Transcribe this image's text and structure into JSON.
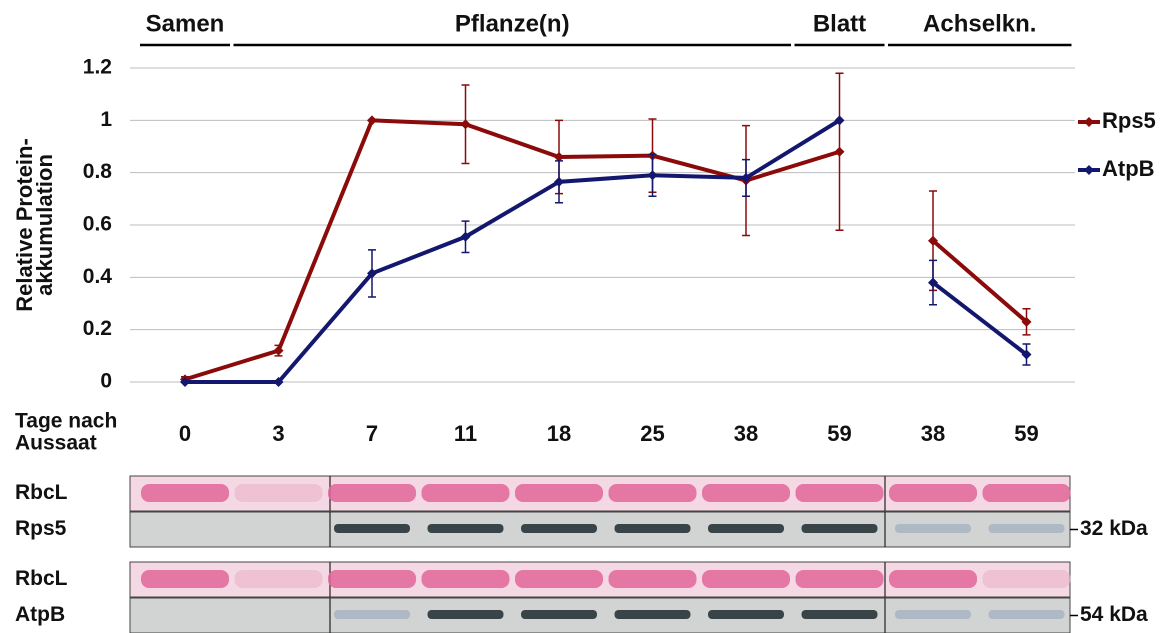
{
  "chart_data": [
    {
      "type": "line",
      "ylabel": [
        "Relative Protein-",
        "akkumulation"
      ],
      "xlabel": [
        "Tage nach",
        "Aussaat"
      ],
      "categories": [
        "0",
        "3",
        "7",
        "11",
        "18",
        "25",
        "38",
        "59"
      ],
      "groups": [
        {
          "label": "Samen",
          "count": 1
        },
        {
          "label": "Pflanze(n)",
          "count": 6
        },
        {
          "label": "Blatt",
          "count": 1
        }
      ],
      "series": [
        {
          "name": "Rps5",
          "color": "#8b0a0a",
          "values": [
            0.01,
            0.12,
            1.0,
            0.985,
            0.86,
            0.865,
            0.77,
            0.88
          ],
          "errors": [
            0.01,
            0.02,
            0,
            0.15,
            0.14,
            0.14,
            0.21,
            0.3
          ]
        },
        {
          "name": "AtpB",
          "color": "#13176e",
          "values": [
            0,
            0,
            0.415,
            0.555,
            0.765,
            0.79,
            0.78,
            1.0
          ],
          "errors": [
            0,
            0,
            0.09,
            0.06,
            0.08,
            0.08,
            0.07,
            0
          ]
        }
      ],
      "ylim": [
        0,
        1.2
      ],
      "yticks": [
        0,
        0.2,
        0.4,
        0.6,
        0.8,
        1,
        1.2
      ],
      "grid": true,
      "legend": "right"
    },
    {
      "type": "line",
      "categories": [
        "38",
        "59"
      ],
      "groups": [
        {
          "label": "Achselkn.",
          "count": 2
        }
      ],
      "series": [
        {
          "color": "#8b0a0a",
          "values": [
            0.54,
            0.23
          ],
          "errors": [
            0.19,
            0.05
          ]
        },
        {
          "color": "#13176e",
          "values": [
            0.38,
            0.105
          ],
          "errors": [
            0.085,
            0.04
          ]
        }
      ],
      "ylim": [
        0,
        1.2
      ]
    }
  ],
  "blots": [
    {
      "label": "RbcL"
    },
    {
      "label": "Rps5",
      "size": "32 kDa"
    },
    {
      "label": "RbcL"
    },
    {
      "label": "AtpB",
      "size": "54 kDa"
    }
  ]
}
